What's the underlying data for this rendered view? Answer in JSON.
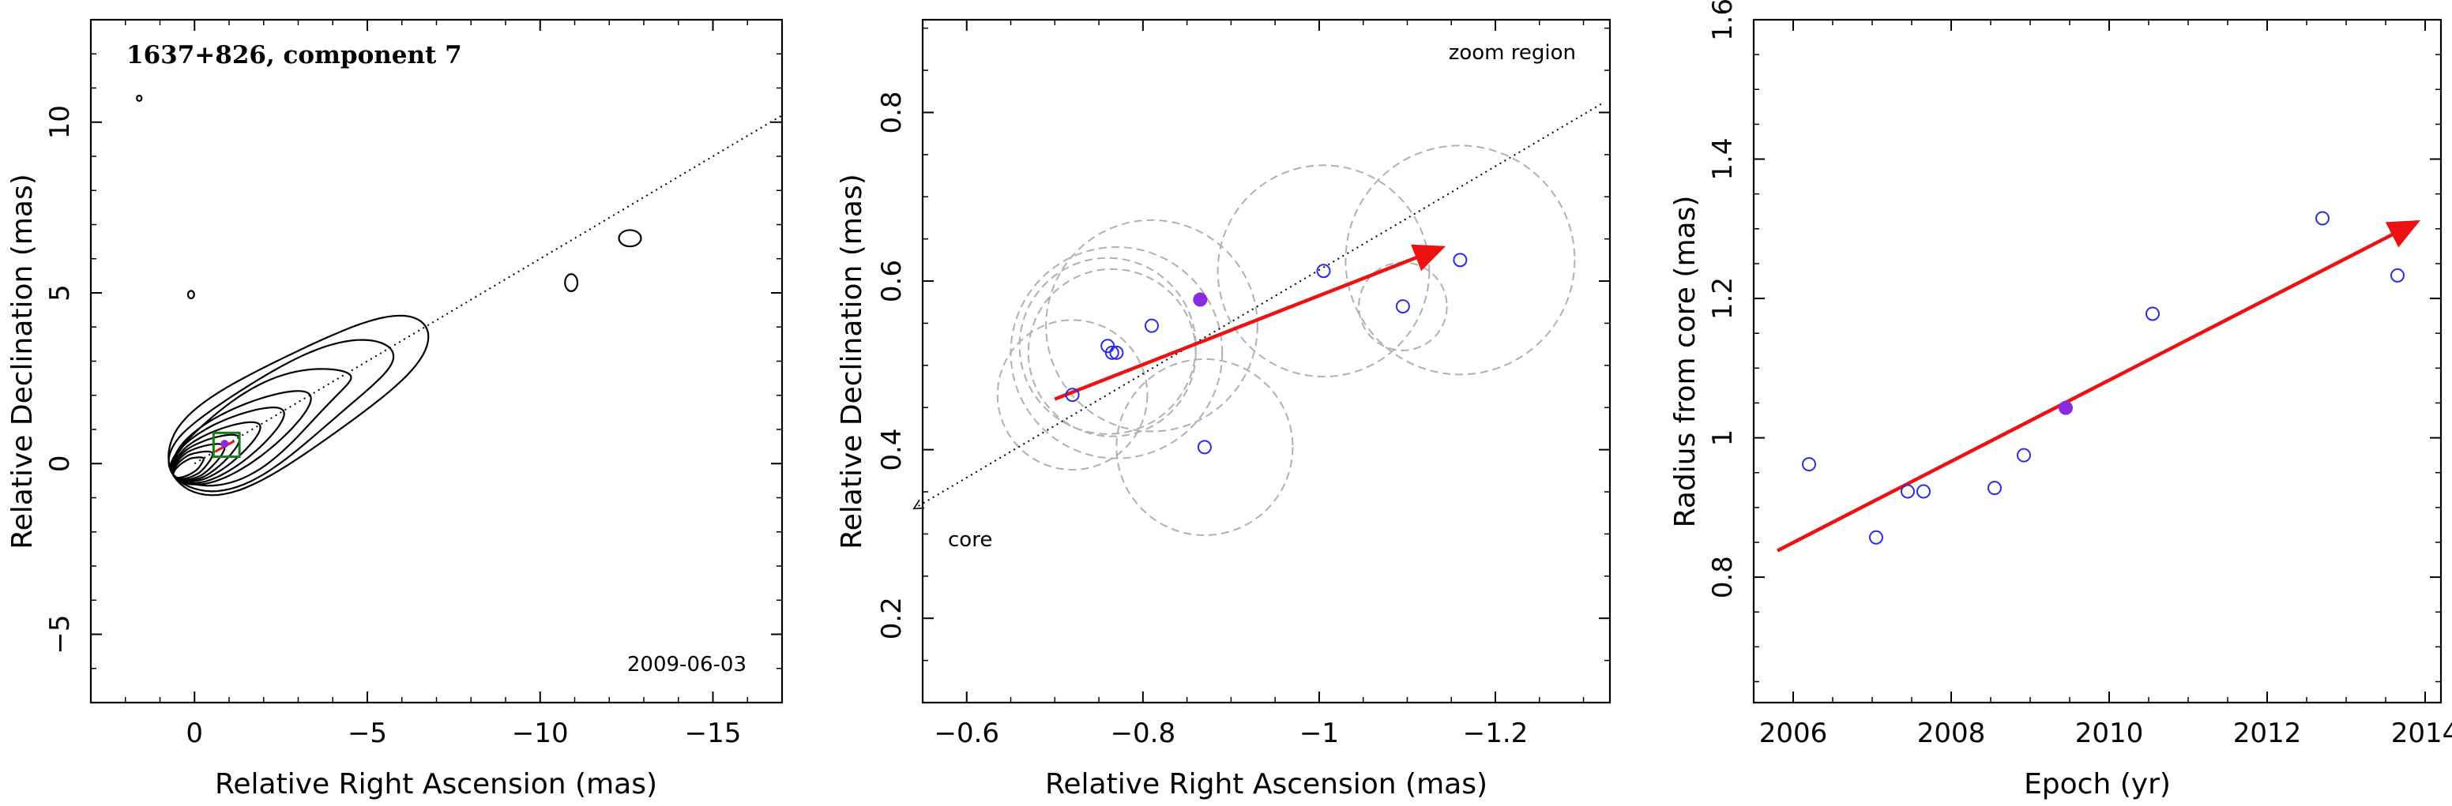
{
  "colors": {
    "red_arrow": "#ee1111",
    "blue_points": "#2a2aee",
    "highlight": "#8a2be2",
    "green_box": "#1a7a1a",
    "gray_circles": "#b0b0b0"
  },
  "chart_data": [
    {
      "type": "contour",
      "title": "1637+826, component 7",
      "date_label": "2009-06-03",
      "xlabel": "Relative Right Ascension (mas)",
      "ylabel": "Relative Declination (mas)",
      "xlim": [
        3,
        -17
      ],
      "ylim": [
        -7,
        13
      ],
      "xticks": [
        "0",
        "−5",
        "−10",
        "−15"
      ],
      "yticks": [
        "−5",
        "0",
        "5",
        "10"
      ],
      "jet_axis": {
        "from": [
          0,
          0
        ],
        "to": [
          -17,
          10.2
        ]
      },
      "component": {
        "x": -0.87,
        "y": 0.58
      },
      "zoom_box": {
        "x": [
          -0.55,
          -1.3
        ],
        "y": [
          0.2,
          0.9
        ]
      }
    },
    {
      "type": "scatter",
      "xlabel": "Relative Right Ascension (mas)",
      "ylabel": "Relative Declination (mas)",
      "xlim": [
        -0.55,
        -1.33
      ],
      "ylim": [
        0.1,
        0.91
      ],
      "xticks": [
        "−0.6",
        "−0.8",
        "−1",
        "−1.2"
      ],
      "yticks": [
        "0.2",
        "0.4",
        "0.6",
        "0.8"
      ],
      "annotations": {
        "zoom": "zoom region",
        "core": "core"
      },
      "points": [
        {
          "x": -0.72,
          "y": 0.465,
          "r": 0.085
        },
        {
          "x": -0.76,
          "y": 0.523,
          "r": 0.1
        },
        {
          "x": -0.765,
          "y": 0.515,
          "r": 0.095
        },
        {
          "x": -0.77,
          "y": 0.515,
          "r": 0.12
        },
        {
          "x": -0.81,
          "y": 0.547,
          "r": 0.12
        },
        {
          "x": -0.87,
          "y": 0.403,
          "r": 0.1
        },
        {
          "x": -1.005,
          "y": 0.612,
          "r": 0.12
        },
        {
          "x": -1.095,
          "y": 0.57,
          "r": 0.05
        },
        {
          "x": -1.16,
          "y": 0.625,
          "r": 0.13
        }
      ],
      "highlight_point": {
        "x": -0.865,
        "y": 0.578
      },
      "motion_arrow": {
        "from": [
          -0.7,
          0.46
        ],
        "to": [
          -1.14,
          0.64
        ]
      },
      "core_direction": {
        "from": [
          -1.32,
          0.81
        ],
        "to": [
          -0.54,
          0.33
        ]
      }
    },
    {
      "type": "scatter",
      "xlabel": "Epoch (yr)",
      "ylabel": "Radius from core (mas)",
      "xlim": [
        2005.5,
        2014.2
      ],
      "ylim": [
        0.62,
        1.6
      ],
      "xticks": [
        "2006",
        "2008",
        "2010",
        "2012",
        "2014"
      ],
      "yticks": [
        "0.8",
        "1",
        "1.2",
        "1.4",
        "1.6"
      ],
      "points": [
        {
          "x": 2006.2,
          "y": 0.962
        },
        {
          "x": 2007.05,
          "y": 0.857
        },
        {
          "x": 2007.45,
          "y": 0.923
        },
        {
          "x": 2007.65,
          "y": 0.923
        },
        {
          "x": 2008.55,
          "y": 0.928
        },
        {
          "x": 2008.92,
          "y": 0.975
        },
        {
          "x": 2010.55,
          "y": 1.178
        },
        {
          "x": 2012.7,
          "y": 1.315
        },
        {
          "x": 2013.65,
          "y": 1.233
        }
      ],
      "highlight_point": {
        "x": 2009.45,
        "y": 1.043
      },
      "fit_line": {
        "from": [
          2005.8,
          0.838
        ],
        "to": [
          2013.9,
          1.31
        ]
      }
    }
  ]
}
